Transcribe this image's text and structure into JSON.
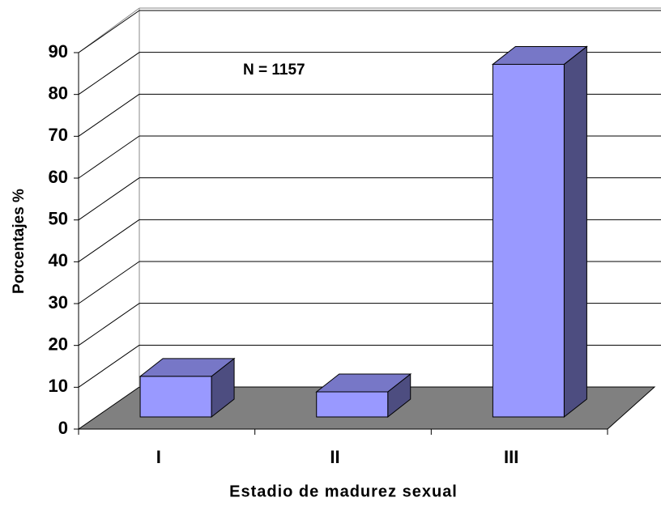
{
  "chart_data": {
    "type": "bar3d",
    "annotation": "N = 1157",
    "categories": [
      "I",
      "II",
      "III"
    ],
    "values": [
      9.7,
      6,
      84.3
    ],
    "color": "#9999ff",
    "ylim": [
      0,
      90
    ],
    "yticks": [
      0,
      10,
      20,
      30,
      40,
      50,
      60,
      70,
      80,
      90
    ],
    "grid": true,
    "xlabel": "Estadio de madurez sexual",
    "ylabel": "Porcentajes %"
  }
}
